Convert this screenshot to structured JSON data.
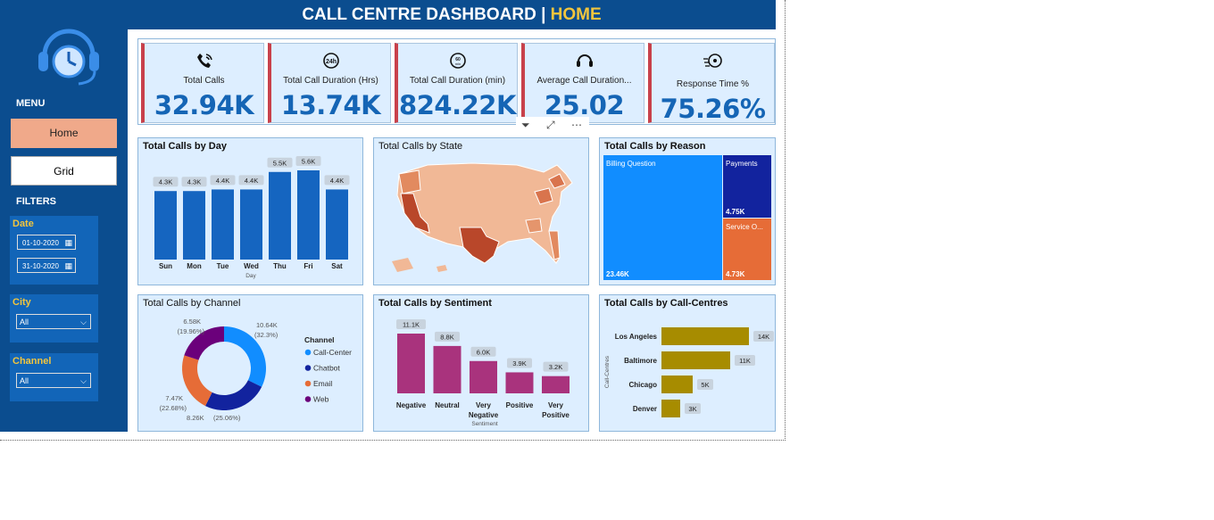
{
  "header": {
    "title_main": "CALL CENTRE DASHBOARD | ",
    "title_accent": "HOME",
    "accent_color": "#f2c53d",
    "bg_color": "#0b4d8f"
  },
  "sidebar": {
    "logo_icon": "headset-clock-icon",
    "menu_label": "MENU",
    "nav": [
      {
        "label": "Home",
        "active": true
      },
      {
        "label": "Grid",
        "active": false
      }
    ],
    "filters_label": "FILTERS",
    "date": {
      "title": "Date",
      "start": "01-10-2020",
      "end": "31-10-2020"
    },
    "city": {
      "title": "City",
      "value": "All"
    },
    "channel": {
      "title": "Channel",
      "value": "All"
    }
  },
  "kpis": [
    {
      "icon": "phone-icon",
      "label": "Total Calls",
      "value": "32.94K"
    },
    {
      "icon": "clock-24h-icon",
      "label": "Total Call Duration (Hrs)",
      "value": "13.74K"
    },
    {
      "icon": "clock-60min-icon",
      "label": "Total Call Duration (min)",
      "value": "824.22K"
    },
    {
      "icon": "headset-icon",
      "label": "Average Call Duration...",
      "value": "25.02"
    },
    {
      "icon": "speed-gear-icon",
      "label": "Response Time %",
      "value": "75.26%"
    }
  ],
  "visual_tools": {
    "filter_icon": "filter-icon",
    "focus_icon": "focus-mode-icon",
    "more_icon": "more-options-icon"
  },
  "charts": {
    "by_day": {
      "title": "Total Calls by Day",
      "chart_data": {
        "type": "bar",
        "categories": [
          "Sun",
          "Mon",
          "Tue",
          "Wed",
          "Thu",
          "Fri",
          "Sat"
        ],
        "values": [
          4.3,
          4.3,
          4.4,
          4.4,
          5.5,
          5.6,
          4.4
        ],
        "labels": [
          "4.3K",
          "4.3K",
          "4.4K",
          "4.4K",
          "5.5K",
          "5.6K",
          "4.4K"
        ],
        "xlabel": "Day",
        "ylim": [
          0,
          5.6
        ],
        "color": "#1565c0"
      }
    },
    "by_state": {
      "title": "Total Calls by State"
    },
    "by_reason": {
      "title": "Total Calls by Reason",
      "chart_data": {
        "type": "treemap",
        "categories": [
          "Billing Question",
          "Payments",
          "Service O..."
        ],
        "values": [
          23.46,
          4.75,
          4.73
        ],
        "labels": [
          "23.46K",
          "4.75K",
          "4.73K"
        ],
        "colors": [
          "#118dff",
          "#12239e",
          "#e66c37"
        ]
      }
    },
    "by_channel": {
      "title": "Total Calls by Channel",
      "legend_title": "Channel",
      "chart_data": {
        "type": "pie",
        "categories": [
          "Call-Center",
          "Chatbot",
          "Email",
          "Web"
        ],
        "values": [
          10.64,
          8.26,
          7.47,
          6.58
        ],
        "value_labels": [
          "10.64K",
          "8.26K",
          "7.47K",
          "6.58K"
        ],
        "pct_labels": [
          "(32.3%)",
          "(25.06%)",
          "(22.68%)",
          "(19.96%)"
        ],
        "colors": [
          "#118dff",
          "#12239e",
          "#e66c37",
          "#6b007b"
        ]
      }
    },
    "by_sentiment": {
      "title": "Total Calls by Sentiment",
      "chart_data": {
        "type": "bar",
        "categories": [
          "Negative",
          "Neutral",
          "Very Negative",
          "Positive",
          "Very Positive"
        ],
        "values": [
          11.1,
          8.8,
          6.0,
          3.9,
          3.2
        ],
        "labels": [
          "11.1K",
          "8.8K",
          "6.0K",
          "3.9K",
          "3.2K"
        ],
        "xlabel": "Sentiment",
        "ylim": [
          0,
          11.1
        ],
        "color": "#a9337d"
      }
    },
    "by_centre": {
      "title": "Total Calls by Call-Centres",
      "chart_data": {
        "type": "bar",
        "orientation": "horizontal",
        "categories": [
          "Los Angeles",
          "Baltimore",
          "Chicago",
          "Denver"
        ],
        "values": [
          14,
          11,
          5,
          3
        ],
        "labels": [
          "14K",
          "11K",
          "5K",
          "3K"
        ],
        "ylabel": "Call-Centres",
        "xlim": [
          0,
          14
        ],
        "color": "#a78c00"
      }
    }
  }
}
